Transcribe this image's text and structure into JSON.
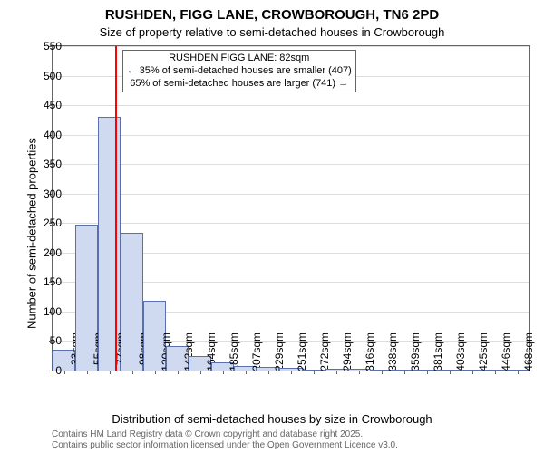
{
  "title": "RUSHDEN, FIGG LANE, CROWBOROUGH, TN6 2PD",
  "subtitle": "Size of property relative to semi-detached houses in Crowborough",
  "ylabel": "Number of semi-detached properties",
  "xlabel": "Distribution of semi-detached houses by size in Crowborough",
  "footnote_line1": "Contains HM Land Registry data © Crown copyright and database right 2025.",
  "footnote_line2": "Contains public sector information licensed under the Open Government Licence v3.0.",
  "chart": {
    "type": "bar",
    "ylim": [
      0,
      550
    ],
    "yticks": [
      0,
      50,
      100,
      150,
      200,
      250,
      300,
      350,
      400,
      450,
      500,
      550
    ],
    "xtick_labels": [
      "33sqm",
      "55sqm",
      "77sqm",
      "98sqm",
      "120sqm",
      "142sqm",
      "164sqm",
      "185sqm",
      "207sqm",
      "229sqm",
      "251sqm",
      "272sqm",
      "294sqm",
      "316sqm",
      "338sqm",
      "359sqm",
      "381sqm",
      "403sqm",
      "425sqm",
      "446sqm",
      "468sqm"
    ],
    "bars": [
      36,
      248,
      430,
      234,
      118,
      42,
      24,
      14,
      8,
      6,
      4,
      2,
      3,
      3,
      2,
      1,
      1,
      0,
      1,
      0,
      1
    ],
    "bar_fill": "#cfd9ef",
    "bar_stroke": "#5a6fae",
    "bar_width_ratio": 1.0,
    "background_color": "#ffffff",
    "grid_color": "#dddddd",
    "axis_color": "#666666",
    "title_fontsize": 15,
    "subtitle_fontsize": 13,
    "label_fontsize": 13,
    "tick_fontsize": 12,
    "refline_value_sqm": 82,
    "refline_color": "#ff0000",
    "annotation": {
      "line1": "RUSHDEN FIGG LANE: 82sqm",
      "line2": "← 35% of semi-detached houses are smaller (407)",
      "line3": "65% of semi-detached houses are larger (741) →",
      "fontsize": 11
    }
  }
}
